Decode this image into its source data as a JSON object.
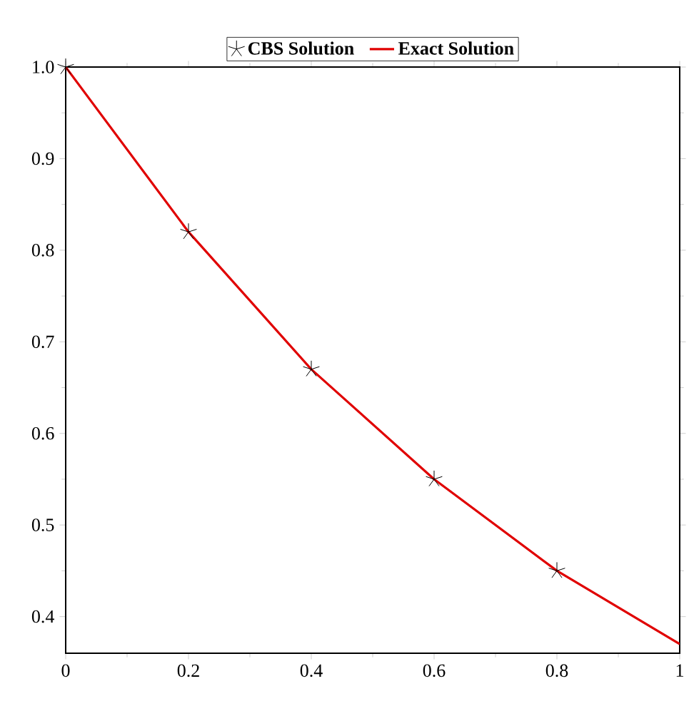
{
  "chart_data": {
    "type": "line",
    "xlim": [
      0,
      1
    ],
    "ylim": [
      0.36,
      1.0
    ],
    "xticks": [
      0,
      0.2,
      0.4,
      0.6,
      0.8,
      1
    ],
    "yticks": [
      0.4,
      0.5,
      0.6,
      0.7,
      0.8,
      0.9,
      {
        "value": 1.0,
        "label": "1.0"
      }
    ],
    "legend": "top",
    "grid": false,
    "series": [
      {
        "name": "CBS Solution",
        "type": "scatter",
        "marker": "cross",
        "color": "#000000",
        "x": [
          0,
          0.2,
          0.4,
          0.6,
          0.8
        ],
        "values": [
          1.0,
          0.82,
          0.67,
          0.55,
          0.45
        ]
      },
      {
        "name": "Exact Solution",
        "marker": "none",
        "line_style": "solid",
        "color": "#e00000",
        "x": [
          0,
          0.2,
          0.4,
          0.6,
          0.8,
          1
        ],
        "values": [
          1.0,
          0.82,
          0.67,
          0.55,
          0.45,
          0.37
        ]
      }
    ]
  }
}
